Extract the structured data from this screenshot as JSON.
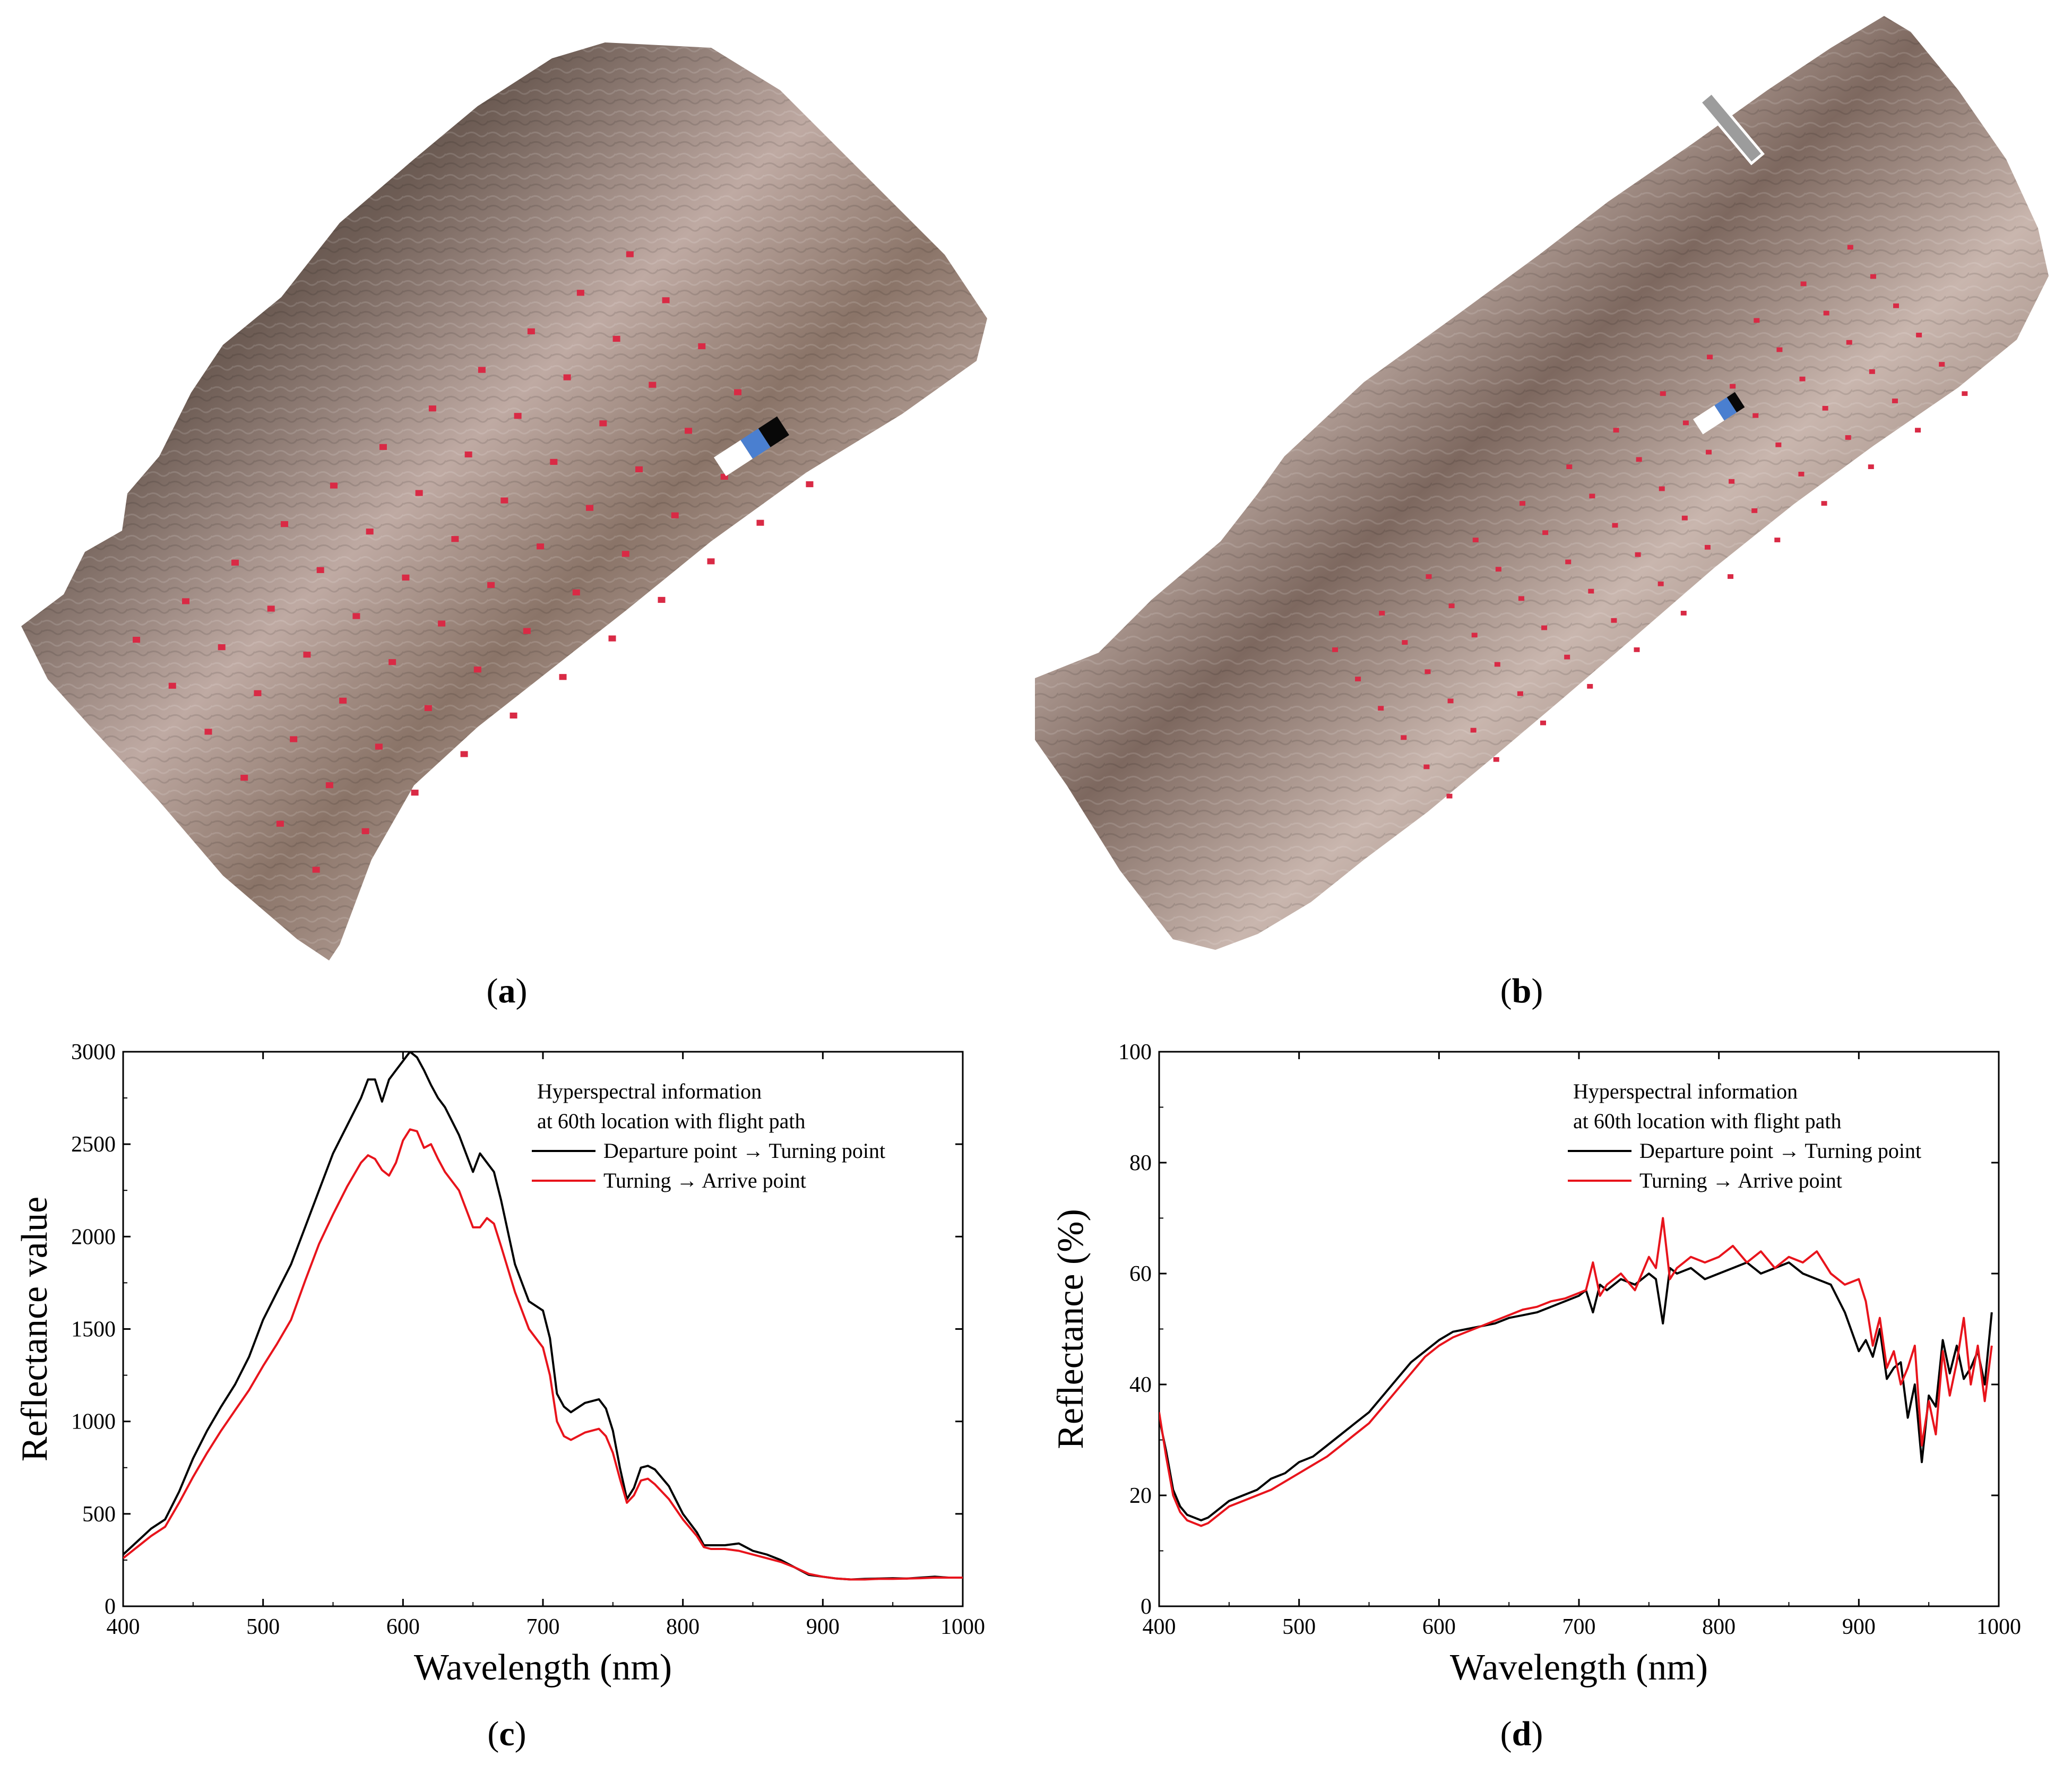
{
  "panels": {
    "a": {
      "letter": "a"
    },
    "b": {
      "letter": "b"
    },
    "c": {
      "letter": "c"
    },
    "d": {
      "letter": "d"
    }
  },
  "colors": {
    "departure": "#000000",
    "turning": "#e8141c",
    "soil_dark": "#3b322c",
    "soil_mid": "#8a7468",
    "soil_light": "#d7c4bd",
    "marker": "#d92a45",
    "panel_white": "#ffffff",
    "panel_blue": "#4a7fd0",
    "panel_black": "#080808"
  },
  "chart_data": [
    {
      "id": "c",
      "type": "line",
      "title": "",
      "xlabel": "Wavelength (nm)",
      "ylabel": "Reflectance value",
      "xlim": [
        400,
        1000
      ],
      "ylim": [
        0,
        3000
      ],
      "xticks": [
        400,
        500,
        600,
        700,
        800,
        900,
        1000
      ],
      "yticks": [
        0,
        500,
        1000,
        1500,
        2000,
        2500,
        3000
      ],
      "legend": {
        "placement": "top-right",
        "header": [
          "Hyperspectral information",
          "at 60th location with flight path"
        ],
        "entries": [
          "Departure point → Turning point",
          "Turning → Arrive point"
        ]
      },
      "series": [
        {
          "name": "Departure point → Turning point",
          "color_key": "departure",
          "x": [
            400,
            410,
            420,
            430,
            440,
            450,
            460,
            470,
            480,
            490,
            500,
            510,
            520,
            530,
            540,
            550,
            560,
            570,
            575,
            580,
            585,
            590,
            595,
            600,
            605,
            610,
            615,
            620,
            625,
            630,
            640,
            650,
            655,
            660,
            665,
            670,
            680,
            690,
            700,
            705,
            710,
            715,
            720,
            730,
            740,
            745,
            750,
            755,
            760,
            765,
            770,
            775,
            780,
            790,
            800,
            810,
            815,
            820,
            830,
            840,
            850,
            860,
            870,
            880,
            890,
            900,
            910,
            920,
            930,
            940,
            950,
            960,
            970,
            980,
            990,
            1000
          ],
          "y": [
            280,
            350,
            420,
            470,
            620,
            800,
            950,
            1080,
            1200,
            1350,
            1550,
            1700,
            1850,
            2050,
            2250,
            2450,
            2600,
            2750,
            2850,
            2850,
            2730,
            2850,
            2900,
            2950,
            3000,
            2970,
            2900,
            2820,
            2750,
            2700,
            2550,
            2350,
            2450,
            2400,
            2350,
            2200,
            1850,
            1650,
            1600,
            1450,
            1150,
            1080,
            1050,
            1100,
            1120,
            1070,
            950,
            750,
            580,
            640,
            750,
            760,
            740,
            650,
            500,
            400,
            330,
            330,
            330,
            340,
            300,
            280,
            250,
            210,
            170,
            160,
            150,
            145,
            148,
            150,
            152,
            150,
            155,
            160,
            155,
            155
          ]
        },
        {
          "name": "Turning → Arrive point",
          "color_key": "turning",
          "x": [
            400,
            410,
            420,
            430,
            440,
            450,
            460,
            470,
            480,
            490,
            500,
            510,
            520,
            530,
            540,
            550,
            560,
            570,
            575,
            580,
            585,
            590,
            595,
            600,
            605,
            610,
            615,
            620,
            625,
            630,
            640,
            650,
            655,
            660,
            665,
            670,
            680,
            690,
            700,
            705,
            710,
            715,
            720,
            730,
            740,
            745,
            750,
            755,
            760,
            765,
            770,
            775,
            780,
            790,
            800,
            810,
            815,
            820,
            830,
            840,
            850,
            860,
            870,
            880,
            890,
            900,
            910,
            920,
            930,
            940,
            950,
            960,
            970,
            980,
            990,
            1000
          ],
          "y": [
            260,
            320,
            380,
            430,
            560,
            700,
            830,
            950,
            1060,
            1170,
            1300,
            1420,
            1550,
            1760,
            1960,
            2120,
            2270,
            2400,
            2440,
            2420,
            2360,
            2330,
            2400,
            2520,
            2580,
            2570,
            2480,
            2500,
            2420,
            2350,
            2250,
            2050,
            2050,
            2100,
            2070,
            1950,
            1700,
            1500,
            1400,
            1250,
            1000,
            920,
            900,
            940,
            960,
            920,
            830,
            690,
            560,
            600,
            680,
            690,
            660,
            580,
            470,
            380,
            320,
            310,
            310,
            300,
            280,
            260,
            240,
            210,
            175,
            160,
            150,
            145,
            145,
            148,
            148,
            150,
            152,
            155,
            155,
            155
          ]
        }
      ]
    },
    {
      "id": "d",
      "type": "line",
      "title": "",
      "xlabel": "Wavelength (nm)",
      "ylabel": "Reflectance (%)",
      "xlim": [
        400,
        1000
      ],
      "ylim": [
        0,
        100
      ],
      "xticks": [
        400,
        500,
        600,
        700,
        800,
        900,
        1000
      ],
      "yticks": [
        0,
        20,
        40,
        60,
        80,
        100
      ],
      "legend": {
        "placement": "top-right",
        "header": [
          "Hyperspectral information",
          "at 60th location with flight path"
        ],
        "entries": [
          "Departure point → Turning point",
          "Turning → Arrive point"
        ]
      },
      "series": [
        {
          "name": "Departure point → Turning point",
          "color_key": "departure",
          "x": [
            400,
            405,
            410,
            415,
            420,
            425,
            430,
            435,
            440,
            450,
            460,
            470,
            480,
            490,
            500,
            510,
            520,
            530,
            540,
            550,
            560,
            570,
            580,
            590,
            600,
            610,
            620,
            630,
            640,
            650,
            660,
            670,
            680,
            690,
            700,
            705,
            710,
            715,
            720,
            730,
            740,
            750,
            755,
            760,
            765,
            770,
            780,
            790,
            800,
            810,
            820,
            830,
            840,
            850,
            860,
            870,
            880,
            890,
            900,
            905,
            910,
            915,
            920,
            925,
            930,
            935,
            940,
            945,
            950,
            955,
            960,
            965,
            970,
            975,
            980,
            985,
            990,
            995
          ],
          "y": [
            34,
            28,
            21,
            18,
            16.5,
            16,
            15.5,
            16,
            17,
            19,
            20,
            21,
            23,
            24,
            26,
            27,
            29,
            31,
            33,
            35,
            38,
            41,
            44,
            46,
            48,
            49.5,
            50,
            50.5,
            51,
            52,
            52.5,
            53,
            54,
            55,
            56,
            57,
            53,
            58,
            57,
            59,
            58,
            60,
            59,
            51,
            61,
            60,
            61,
            59,
            60,
            61,
            62,
            60,
            61,
            62,
            60,
            59,
            58,
            53,
            46,
            48,
            45,
            50,
            41,
            43,
            44,
            34,
            40,
            26,
            38,
            36,
            48,
            42,
            47,
            41,
            43,
            46,
            40,
            53
          ]
        },
        {
          "name": "Turning → Arrive point",
          "color_key": "turning",
          "x": [
            400,
            405,
            410,
            415,
            420,
            425,
            430,
            435,
            440,
            450,
            460,
            470,
            480,
            490,
            500,
            510,
            520,
            530,
            540,
            550,
            560,
            570,
            580,
            590,
            600,
            610,
            620,
            630,
            640,
            650,
            660,
            670,
            680,
            690,
            700,
            705,
            710,
            715,
            720,
            730,
            740,
            750,
            755,
            760,
            765,
            770,
            780,
            790,
            800,
            810,
            820,
            830,
            840,
            850,
            860,
            870,
            880,
            890,
            900,
            905,
            910,
            915,
            920,
            925,
            930,
            935,
            940,
            945,
            950,
            955,
            960,
            965,
            970,
            975,
            980,
            985,
            990,
            995
          ],
          "y": [
            35,
            27,
            20,
            17,
            15.5,
            15,
            14.5,
            15,
            16,
            18,
            19,
            20,
            21,
            22.5,
            24,
            25.5,
            27,
            29,
            31,
            33,
            36,
            39,
            42,
            45,
            47,
            48.5,
            49.5,
            50.5,
            51.5,
            52.5,
            53.5,
            54,
            55,
            55.5,
            56.5,
            57,
            62,
            56,
            58,
            60,
            57,
            63,
            61,
            70,
            59,
            61,
            63,
            62,
            63,
            65,
            62,
            64,
            61,
            63,
            62,
            64,
            60,
            58,
            59,
            55,
            47,
            52,
            43,
            46,
            40,
            43,
            47,
            29,
            37,
            31,
            46,
            38,
            44,
            52,
            40,
            47,
            37,
            47
          ]
        }
      ]
    }
  ]
}
